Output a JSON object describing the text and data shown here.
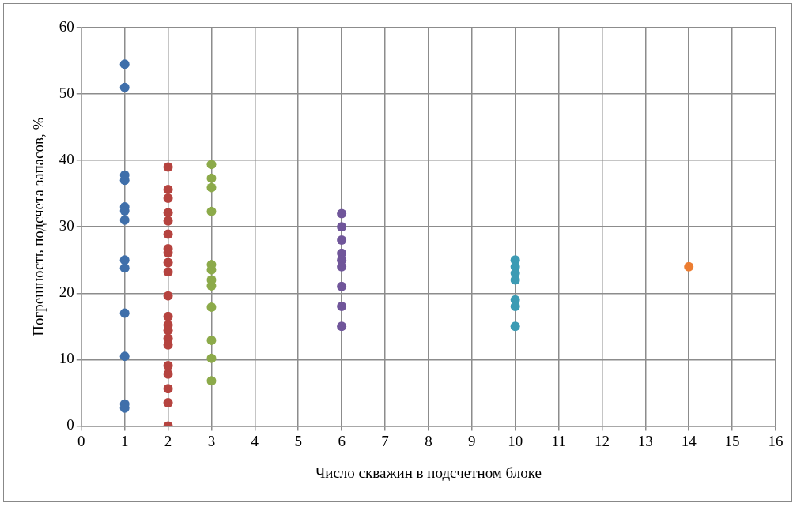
{
  "chart_data": {
    "type": "scatter",
    "xlabel": "Число скважин в подсчетном блоке",
    "ylabel": "Погрешность подсчета запасов, %",
    "xlim": [
      0,
      16
    ],
    "xticks": [
      0,
      1,
      2,
      3,
      4,
      5,
      6,
      7,
      8,
      9,
      10,
      11,
      12,
      13,
      14,
      15,
      16
    ],
    "ylim": [
      0,
      60
    ],
    "yticks": [
      0,
      10,
      20,
      30,
      40,
      50,
      60
    ],
    "grid": true,
    "legend": false,
    "marker": "circle",
    "series": [
      {
        "color": "#3f6faa",
        "x": [
          1,
          1,
          1,
          1,
          1,
          1,
          1,
          1,
          1,
          1,
          1,
          1,
          1
        ],
        "values": [
          54.5,
          51,
          37.8,
          37,
          33,
          32.4,
          31,
          25,
          23.8,
          17,
          10.5,
          3.3,
          2.7
        ]
      },
      {
        "color": "#b5433f",
        "x": [
          2,
          2,
          2,
          2,
          2,
          2,
          2,
          2,
          2,
          2,
          2,
          2,
          2,
          2,
          2,
          2,
          2,
          2,
          2,
          2,
          2
        ],
        "values": [
          39,
          35.6,
          34.3,
          32.1,
          30.9,
          28.9,
          26.7,
          26.1,
          24.6,
          23.2,
          19.6,
          16.5,
          15.2,
          14.4,
          13.2,
          12.2,
          9.1,
          7.8,
          5.6,
          3.5,
          0
        ]
      },
      {
        "color": "#8caa4a",
        "x": [
          3,
          3,
          3,
          3,
          3,
          3,
          3,
          3,
          3,
          3,
          3,
          3
        ],
        "values": [
          39.4,
          37.3,
          35.9,
          32.3,
          24.3,
          23.5,
          22,
          21.1,
          17.9,
          12.9,
          10.2,
          6.8
        ]
      },
      {
        "color": "#70569a",
        "x": [
          6,
          6,
          6,
          6,
          6,
          6,
          6,
          6,
          6
        ],
        "values": [
          32,
          30,
          28,
          26,
          25,
          24,
          21,
          18,
          15
        ]
      },
      {
        "color": "#3c9bb4",
        "x": [
          10,
          10,
          10,
          10,
          10,
          10,
          10
        ],
        "values": [
          25,
          24,
          23,
          22,
          19,
          18,
          15
        ]
      },
      {
        "color": "#ec7d31",
        "x": [
          14
        ],
        "values": [
          24
        ]
      }
    ]
  }
}
